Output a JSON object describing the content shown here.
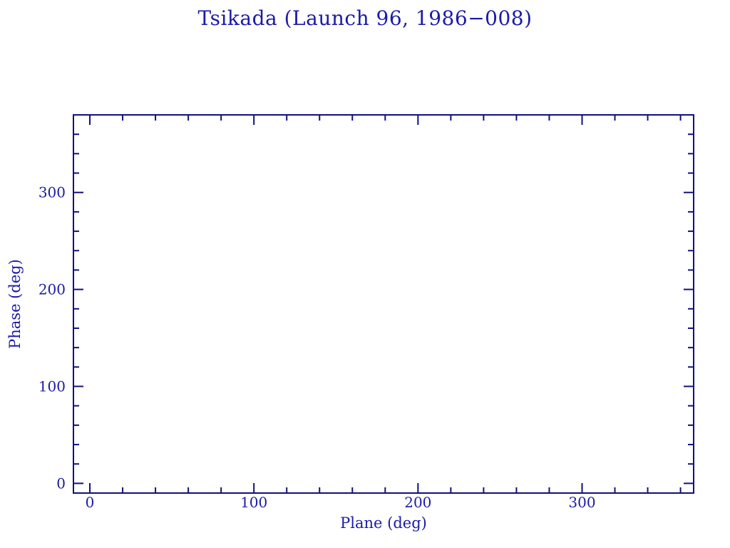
{
  "page": {
    "background": "#ffffff"
  },
  "chart_data": {
    "type": "scatter",
    "title": "Tsikada (Launch 96, 1986−008)",
    "xlabel": "Plane (deg)",
    "ylabel": "Phase (deg)",
    "xlim": [
      -10,
      368
    ],
    "ylim": [
      -10,
      380
    ],
    "x_major_ticks": [
      0,
      100,
      200,
      300
    ],
    "y_major_ticks": [
      0,
      100,
      200,
      300
    ],
    "x_tick_labels": [
      "0",
      "100",
      "200",
      "300"
    ],
    "y_tick_labels": [
      "0",
      "100",
      "200",
      "300"
    ],
    "minor_tick_interval": 20,
    "grid": false,
    "legend": null,
    "points": [],
    "frame_color": "#10107d",
    "text_color": "#1b1ba8"
  }
}
